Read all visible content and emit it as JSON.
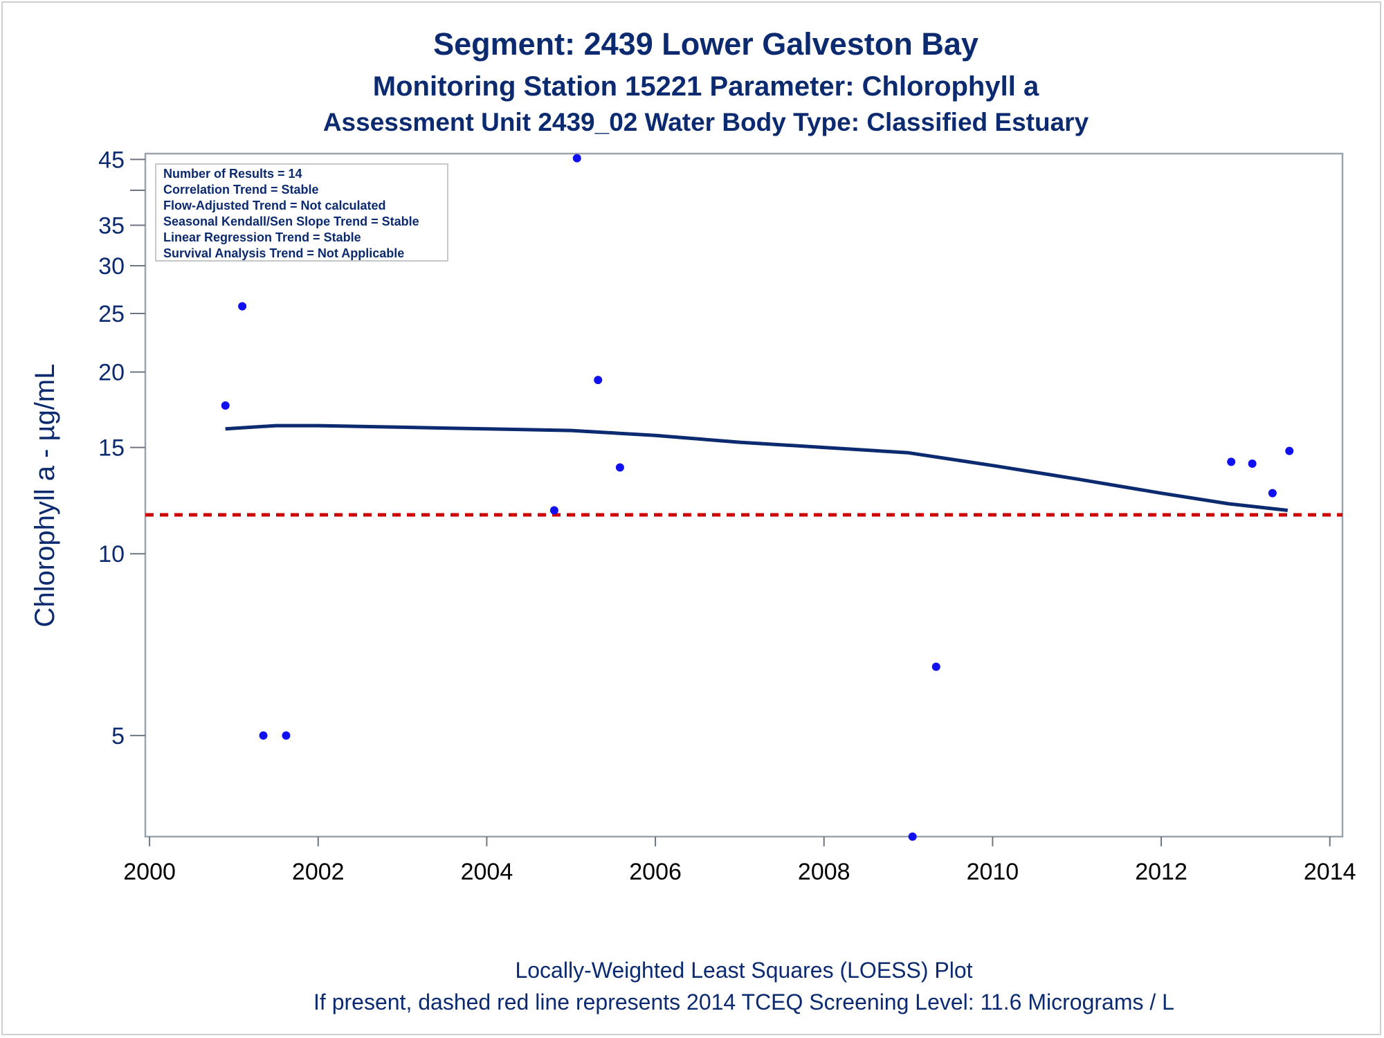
{
  "chart_data": {
    "type": "scatter",
    "title": "Segment: 2439  Lower Galveston Bay",
    "subtitle": "Monitoring Station 15221 Parameter: Chlorophyll a",
    "subtitle2": "Assessment Unit 2439_02   Water Body Type: Classified Estuary",
    "ylabel": "Chlorophyll a -  µg/mL",
    "xlabel": "",
    "footnote1": "Locally-Weighted Least Squares (LOESS) Plot",
    "footnote2": "If present, dashed red line represents 2014 TCEQ Screening Level: 11.6 Micrograms / L",
    "y_scale": "log",
    "ylim": [
      3.4,
      46
    ],
    "xlim": [
      1999.95,
      2014.15
    ],
    "x_ticks": [
      2000,
      2002,
      2004,
      2006,
      2008,
      2010,
      2012,
      2014
    ],
    "y_ticks": [
      5,
      10,
      15,
      20,
      25,
      30,
      35,
      45
    ],
    "stats": [
      "Number of Results = 14",
      "Correlation Trend = Stable",
      "Flow-Adjusted Trend = Not calculated",
      "Seasonal Kendall/Sen Slope Trend = Stable",
      "Linear Regression Trend = Stable",
      "Survival Analysis Trend = Not Applicable"
    ],
    "points": [
      {
        "x": 2000.9,
        "y": 17.6
      },
      {
        "x": 2001.1,
        "y": 25.7
      },
      {
        "x": 2001.35,
        "y": 5.0
      },
      {
        "x": 2001.62,
        "y": 5.0
      },
      {
        "x": 2004.8,
        "y": 11.8
      },
      {
        "x": 2005.07,
        "y": 45.2
      },
      {
        "x": 2005.32,
        "y": 19.4
      },
      {
        "x": 2005.58,
        "y": 13.9
      },
      {
        "x": 2009.05,
        "y": 3.4
      },
      {
        "x": 2009.33,
        "y": 6.5
      },
      {
        "x": 2012.83,
        "y": 14.2
      },
      {
        "x": 2013.08,
        "y": 14.1
      },
      {
        "x": 2013.32,
        "y": 12.6
      },
      {
        "x": 2013.52,
        "y": 14.8
      }
    ],
    "loess": [
      {
        "x": 2000.9,
        "y": 16.1
      },
      {
        "x": 2001.5,
        "y": 16.3
      },
      {
        "x": 2002.0,
        "y": 16.3
      },
      {
        "x": 2003.0,
        "y": 16.2
      },
      {
        "x": 2004.0,
        "y": 16.1
      },
      {
        "x": 2005.0,
        "y": 16.0
      },
      {
        "x": 2006.0,
        "y": 15.7
      },
      {
        "x": 2007.0,
        "y": 15.3
      },
      {
        "x": 2008.0,
        "y": 15.0
      },
      {
        "x": 2009.0,
        "y": 14.7
      },
      {
        "x": 2010.0,
        "y": 14.0
      },
      {
        "x": 2011.0,
        "y": 13.3
      },
      {
        "x": 2012.0,
        "y": 12.6
      },
      {
        "x": 2012.8,
        "y": 12.1
      },
      {
        "x": 2013.5,
        "y": 11.8
      }
    ],
    "screening_level": 11.6,
    "colors": {
      "points": "#1010f0",
      "loess": "#0b2a6f",
      "screening": "#cc0000",
      "text": "#0b2a6f"
    }
  }
}
